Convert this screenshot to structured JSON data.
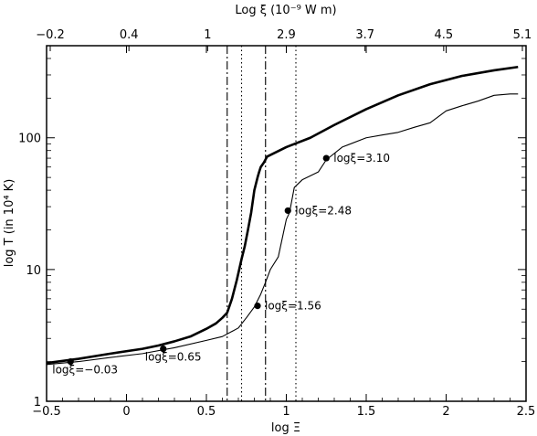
{
  "chart_data": {
    "type": "line",
    "xlabel": "log Ξ",
    "ylabel": "log T (in 10⁴ K)",
    "top_axis_label": "Log ξ (10⁻⁹ W m)",
    "xlim": [
      -0.5,
      2.5
    ],
    "ylim": [
      1,
      500
    ],
    "y_scale": "log",
    "grid": false,
    "x_ticks": [
      "−0.5",
      "0",
      "0.5",
      "1",
      "1.5",
      "2",
      "2.5"
    ],
    "y_ticks": [
      "1",
      "10",
      "100"
    ],
    "top_ticks": [
      "−0.2",
      "0.4",
      "1",
      "2.9",
      "3.7",
      "4.5",
      "5.1"
    ],
    "series": [
      {
        "x": [
          -0.5,
          -0.3,
          -0.1,
          0.1,
          0.2,
          0.3,
          0.4,
          0.5,
          0.56,
          0.6,
          0.63,
          0.66,
          0.69,
          0.72,
          0.74,
          0.76,
          0.78,
          0.8,
          0.82,
          0.83,
          0.84,
          0.86,
          0.88,
          1.0,
          1.15,
          1.3,
          1.5,
          1.7,
          1.9,
          2.1,
          2.3,
          2.45
        ],
        "y": [
          1.95,
          2.1,
          2.3,
          2.5,
          2.65,
          2.85,
          3.1,
          3.55,
          3.9,
          4.3,
          4.7,
          6.0,
          8.3,
          12.0,
          15.0,
          20.0,
          27.0,
          40.0,
          50.0,
          55.0,
          60.0,
          65.0,
          72.0,
          85.0,
          100.0,
          125.0,
          165.0,
          210.0,
          255.0,
          295.0,
          325.0,
          345.0
        ],
        "style": "thick"
      },
      {
        "x": [
          -0.5,
          -0.3,
          -0.1,
          0.1,
          0.3,
          0.5,
          0.6,
          0.7,
          0.75,
          0.8,
          0.84,
          0.87,
          0.9,
          0.95,
          1.0,
          1.02,
          1.05,
          1.1,
          1.2,
          1.25,
          1.35,
          1.5,
          1.6,
          1.7,
          1.8,
          1.9,
          2.0,
          2.1,
          2.2,
          2.3,
          2.4,
          2.45
        ],
        "y": [
          1.9,
          2.0,
          2.15,
          2.3,
          2.55,
          2.9,
          3.1,
          3.6,
          4.3,
          5.2,
          6.5,
          8.0,
          10.0,
          12.5,
          24.0,
          27.0,
          42.0,
          48.0,
          55.0,
          68.0,
          85.0,
          100.0,
          105.0,
          110.0,
          120.0,
          130.0,
          160.0,
          175.0,
          190.0,
          210.0,
          215.0,
          215.0
        ],
        "style": "thin"
      }
    ],
    "vlines": [
      {
        "x": 0.63,
        "style": "dashdot"
      },
      {
        "x": 0.72,
        "style": "dotted"
      },
      {
        "x": 0.87,
        "style": "dashdot"
      },
      {
        "x": 1.06,
        "style": "dotted"
      }
    ],
    "points": [
      {
        "x": -0.35,
        "y": 2.0,
        "label": "logξ=−0.03",
        "label_side": "below"
      },
      {
        "x": 0.23,
        "y": 2.5,
        "label": "logξ=0.65",
        "label_side": "below"
      },
      {
        "x": 0.82,
        "y": 5.3,
        "label": "logξ=1.56",
        "label_side": "right"
      },
      {
        "x": 1.01,
        "y": 28.0,
        "label": "logξ=2.48",
        "label_side": "right"
      },
      {
        "x": 1.25,
        "y": 70.0,
        "label": "logξ=3.10",
        "label_side": "right"
      }
    ]
  }
}
